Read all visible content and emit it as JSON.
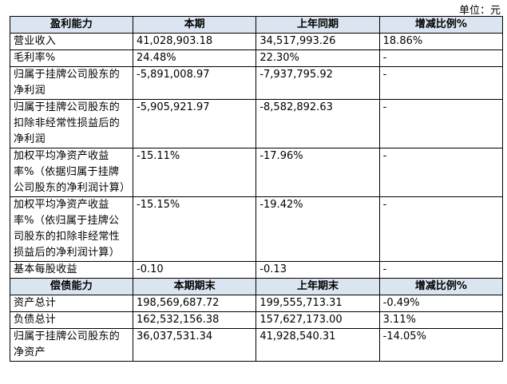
{
  "unit": "单位：元",
  "sections": [
    {
      "header": [
        "盈利能力",
        "本期",
        "上年同期",
        "增减比例%"
      ],
      "rows": [
        [
          "营业收入",
          "41,028,903.18",
          "34,517,993.26",
          "18.86%"
        ],
        [
          "毛利率%",
          "24.48%",
          "22.30%",
          "-"
        ],
        [
          "归属于挂牌公司股东的净利润",
          "-5,891,008.97",
          "-7,937,795.92",
          "-"
        ],
        [
          "归属于挂牌公司股东的扣除非经常性损益后的净利润",
          "-5,905,921.97",
          "-8,582,892.63",
          "-"
        ],
        [
          "加权平均净资产收益率%（依据归属于挂牌公司股东的净利润计算）",
          "-15.11%",
          "-17.96%",
          "-"
        ],
        [
          "加权平均净资产收益率%（依归属于挂牌公司股东的扣除非经常性损益后的净利润计算）",
          "-15.15%",
          "-19.42%",
          "-"
        ],
        [
          "基本每股收益",
          "-0.10",
          "-0.13",
          "-"
        ]
      ]
    },
    {
      "header": [
        "偿债能力",
        "本期期末",
        "上年期末",
        "增减比例%"
      ],
      "rows": [
        [
          "资产总计",
          "198,569,687.72",
          "199,555,713.31",
          "-0.49%"
        ],
        [
          "负债总计",
          "162,532,156.38",
          "157,627,173.00",
          "3.11%"
        ],
        [
          "归属于挂牌公司股东的净资产",
          "36,037,531.34",
          "41,928,540.31",
          "-14.05%"
        ]
      ]
    }
  ]
}
